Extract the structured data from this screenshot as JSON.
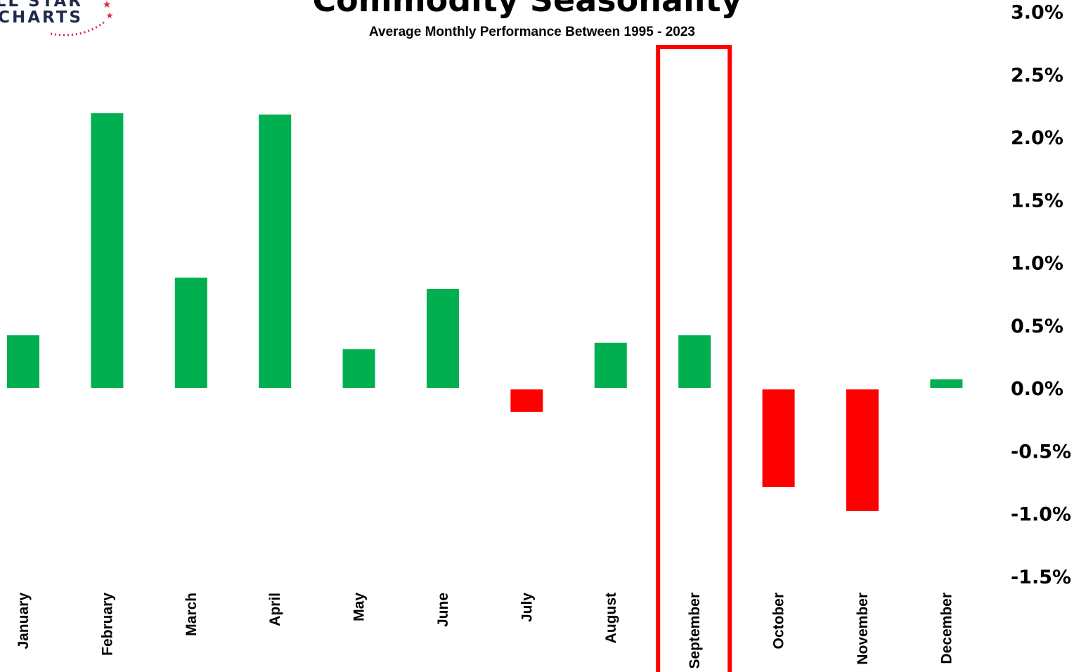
{
  "logo": {
    "line1": "ALL STAR",
    "line2": "CHARTS",
    "text_color": "#1f2a4d",
    "accent_color": "#d7263d"
  },
  "chart_data": {
    "type": "bar",
    "title": "Commodity Seasonality",
    "subtitle": "Average Monthly Performance Between 1995 - 2023",
    "categories": [
      "January",
      "February",
      "March",
      "April",
      "May",
      "June",
      "July",
      "August",
      "September",
      "October",
      "November",
      "December"
    ],
    "values": [
      0.42,
      2.19,
      0.88,
      2.18,
      0.31,
      0.79,
      -0.19,
      0.36,
      0.42,
      -0.79,
      -0.98,
      0.07
    ],
    "unit": "%",
    "ylim": [
      -1.5,
      3.0
    ],
    "yticks": [
      3.0,
      2.5,
      2.0,
      1.5,
      1.0,
      0.5,
      0.0,
      -0.5,
      -1.0,
      -1.5
    ],
    "ytick_labels": [
      "3.0%",
      "2.5%",
      "2.0%",
      "1.5%",
      "1.0%",
      "0.5%",
      "0.0%",
      "-0.5%",
      "-1.0%",
      "-1.5%"
    ],
    "y_axis_position": "right",
    "grid": false,
    "positive_color": "#00b050",
    "negative_color": "#ff0000",
    "highlight": {
      "category": "September",
      "color": "#ff0000"
    }
  }
}
